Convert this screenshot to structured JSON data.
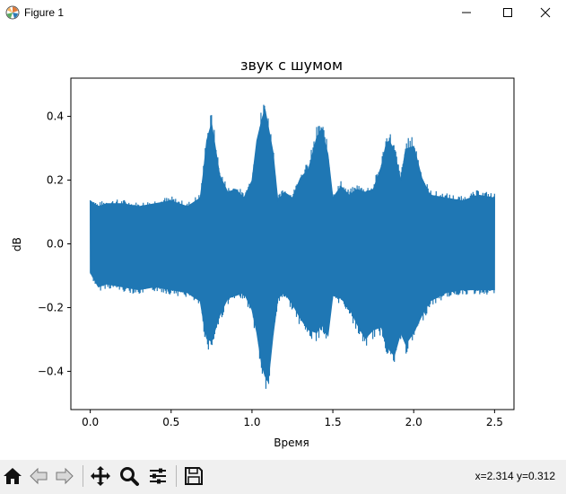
{
  "window": {
    "title": "Figure 1",
    "app_icon": "matplotlib-icon",
    "controls": [
      "minimize-icon",
      "maximize-icon",
      "close-icon"
    ]
  },
  "toolbar": {
    "buttons": [
      "home-icon",
      "back-arrow-icon",
      "forward-arrow-icon",
      "pan-icon",
      "zoom-icon",
      "configure-subplots-icon",
      "save-icon"
    ],
    "coords": "x=2.314 y=0.312"
  },
  "colors": {
    "series": "#1f77b4",
    "toolbar_bg": "#f0f0f0"
  },
  "chart_data": {
    "type": "line",
    "title": "звук с шумом",
    "xlabel": "Время",
    "ylabel": "dB",
    "xlim": [
      -0.12,
      2.62
    ],
    "ylim": [
      -0.52,
      0.52
    ],
    "xticks": [
      0.0,
      0.5,
      1.0,
      1.5,
      2.0,
      2.5
    ],
    "xtick_labels": [
      "0.0",
      "0.5",
      "1.0",
      "1.5",
      "2.0",
      "2.5"
    ],
    "yticks": [
      -0.4,
      -0.2,
      0.0,
      0.2,
      0.4
    ],
    "ytick_labels": [
      "−0.4",
      "−0.2",
      "0.0",
      "0.2",
      "0.4"
    ],
    "grid": false,
    "series": [
      {
        "color": "#1f77b4",
        "x": [
          0.0,
          0.05,
          0.1,
          0.2,
          0.3,
          0.4,
          0.5,
          0.6,
          0.68,
          0.7,
          0.72,
          0.75,
          0.8,
          0.85,
          0.9,
          0.95,
          1.0,
          1.03,
          1.06,
          1.08,
          1.1,
          1.13,
          1.16,
          1.2,
          1.25,
          1.3,
          1.35,
          1.4,
          1.43,
          1.47,
          1.5,
          1.55,
          1.6,
          1.65,
          1.7,
          1.75,
          1.8,
          1.83,
          1.85,
          1.88,
          1.92,
          1.95,
          2.0,
          2.05,
          2.1,
          2.2,
          2.3,
          2.4,
          2.5
        ],
        "upper": [
          0.15,
          0.13,
          0.14,
          0.14,
          0.13,
          0.14,
          0.15,
          0.13,
          0.16,
          0.25,
          0.36,
          0.42,
          0.24,
          0.18,
          0.19,
          0.16,
          0.22,
          0.36,
          0.43,
          0.47,
          0.41,
          0.32,
          0.15,
          0.18,
          0.16,
          0.23,
          0.26,
          0.37,
          0.4,
          0.31,
          0.16,
          0.2,
          0.17,
          0.19,
          0.18,
          0.19,
          0.27,
          0.35,
          0.36,
          0.32,
          0.22,
          0.33,
          0.34,
          0.23,
          0.17,
          0.16,
          0.15,
          0.17,
          0.16
        ],
        "lower": [
          -0.1,
          -0.15,
          -0.14,
          -0.15,
          -0.16,
          -0.15,
          -0.16,
          -0.17,
          -0.2,
          -0.27,
          -0.33,
          -0.34,
          -0.25,
          -0.19,
          -0.18,
          -0.17,
          -0.23,
          -0.31,
          -0.42,
          -0.46,
          -0.48,
          -0.32,
          -0.19,
          -0.17,
          -0.21,
          -0.26,
          -0.3,
          -0.31,
          -0.28,
          -0.32,
          -0.18,
          -0.19,
          -0.22,
          -0.28,
          -0.33,
          -0.3,
          -0.29,
          -0.34,
          -0.37,
          -0.39,
          -0.31,
          -0.35,
          -0.31,
          -0.25,
          -0.2,
          -0.17,
          -0.16,
          -0.16,
          -0.16
        ]
      }
    ]
  }
}
